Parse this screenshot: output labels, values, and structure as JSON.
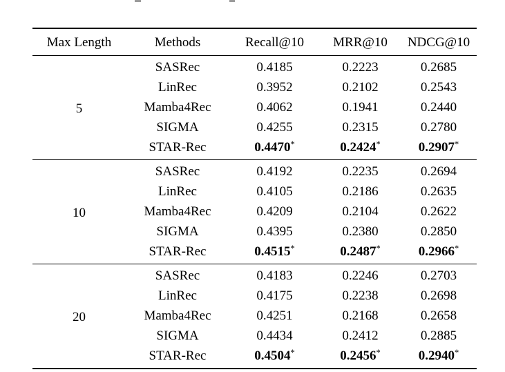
{
  "page": {
    "background_color": "#ffffff",
    "text_color": "#000000",
    "rule_color": "#000000",
    "caption_mark_color": "#9a9a9a"
  },
  "table": {
    "columns": [
      {
        "key": "max_length",
        "label": "Max Length"
      },
      {
        "key": "method",
        "label": "Methods"
      },
      {
        "key": "recall",
        "label": "Recall@10"
      },
      {
        "key": "mrr",
        "label": "MRR@10"
      },
      {
        "key": "ndcg",
        "label": "NDCG@10"
      }
    ],
    "best_marker": "*",
    "groups": [
      {
        "max_length": "5",
        "rows": [
          {
            "method": "SASRec",
            "recall": "0.4185",
            "mrr": "0.2223",
            "ndcg": "0.2685",
            "best": false
          },
          {
            "method": "LinRec",
            "recall": "0.3952",
            "mrr": "0.2102",
            "ndcg": "0.2543",
            "best": false
          },
          {
            "method": "Mamba4Rec",
            "recall": "0.4062",
            "mrr": "0.1941",
            "ndcg": "0.2440",
            "best": false
          },
          {
            "method": "SIGMA",
            "recall": "0.4255",
            "mrr": "0.2315",
            "ndcg": "0.2780",
            "best": false
          },
          {
            "method": "STAR-Rec",
            "recall": "0.4470",
            "mrr": "0.2424",
            "ndcg": "0.2907",
            "best": true
          }
        ]
      },
      {
        "max_length": "10",
        "rows": [
          {
            "method": "SASRec",
            "recall": "0.4192",
            "mrr": "0.2235",
            "ndcg": "0.2694",
            "best": false
          },
          {
            "method": "LinRec",
            "recall": "0.4105",
            "mrr": "0.2186",
            "ndcg": "0.2635",
            "best": false
          },
          {
            "method": "Mamba4Rec",
            "recall": "0.4209",
            "mrr": "0.2104",
            "ndcg": "0.2622",
            "best": false
          },
          {
            "method": "SIGMA",
            "recall": "0.4395",
            "mrr": "0.2380",
            "ndcg": "0.2850",
            "best": false
          },
          {
            "method": "STAR-Rec",
            "recall": "0.4515",
            "mrr": "0.2487",
            "ndcg": "0.2966",
            "best": true
          }
        ]
      },
      {
        "max_length": "20",
        "rows": [
          {
            "method": "SASRec",
            "recall": "0.4183",
            "mrr": "0.2246",
            "ndcg": "0.2703",
            "best": false
          },
          {
            "method": "LinRec",
            "recall": "0.4175",
            "mrr": "0.2238",
            "ndcg": "0.2698",
            "best": false
          },
          {
            "method": "Mamba4Rec",
            "recall": "0.4251",
            "mrr": "0.2168",
            "ndcg": "0.2658",
            "best": false
          },
          {
            "method": "SIGMA",
            "recall": "0.4434",
            "mrr": "0.2412",
            "ndcg": "0.2885",
            "best": false
          },
          {
            "method": "STAR-Rec",
            "recall": "0.4504",
            "mrr": "0.2456",
            "ndcg": "0.2940",
            "best": true
          }
        ]
      }
    ]
  }
}
